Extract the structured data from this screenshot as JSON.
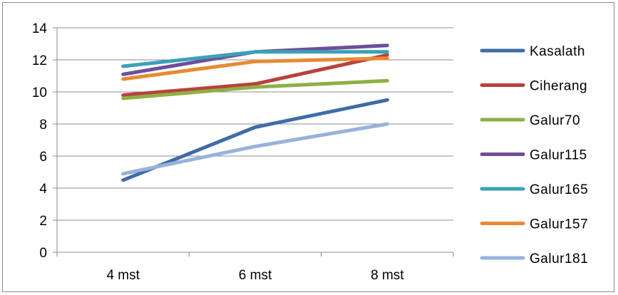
{
  "chart_data": {
    "type": "line",
    "title": "",
    "xlabel": "",
    "ylabel": "",
    "categories": [
      "4 mst",
      "6 mst",
      "8 mst"
    ],
    "ylim": [
      0,
      14
    ],
    "yticks": [
      0,
      2,
      4,
      6,
      8,
      10,
      12,
      14
    ],
    "grid": "horizontal",
    "legend_position": "right",
    "series": [
      {
        "name": "Kasalath",
        "color": "#3F6CA8",
        "values": [
          4.5,
          7.8,
          9.5
        ]
      },
      {
        "name": "Ciherang",
        "color": "#B9413C",
        "values": [
          9.8,
          10.5,
          12.3
        ]
      },
      {
        "name": "Galur70",
        "color": "#8DB044",
        "values": [
          9.6,
          10.3,
          10.7
        ]
      },
      {
        "name": "Galur115",
        "color": "#6E4E9A",
        "values": [
          11.1,
          12.5,
          12.9
        ]
      },
      {
        "name": "Galur165",
        "color": "#3AA1B8",
        "values": [
          11.6,
          12.5,
          12.5
        ]
      },
      {
        "name": "Galur157",
        "color": "#E68A33",
        "values": [
          10.8,
          11.9,
          12.1
        ]
      },
      {
        "name": "Galur181",
        "color": "#97B3DB",
        "values": [
          4.9,
          6.6,
          8.0
        ]
      }
    ]
  }
}
